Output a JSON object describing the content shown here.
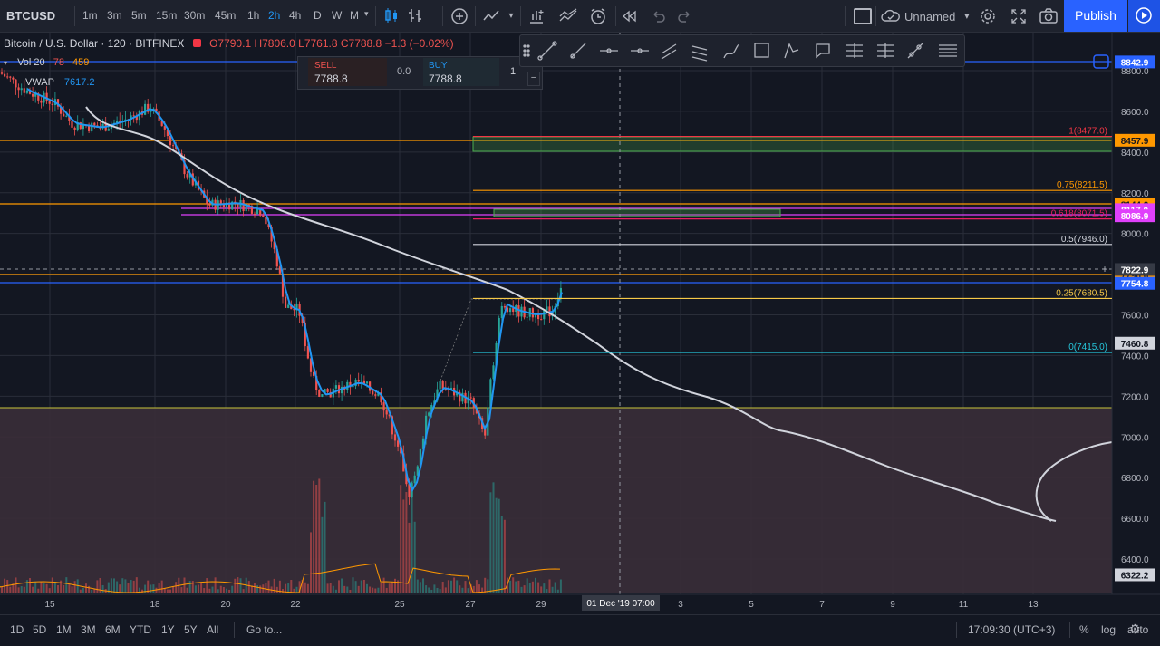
{
  "toolbar": {
    "symbol": "BTCUSD",
    "intervals": [
      "1m",
      "3m",
      "5m",
      "15m",
      "30m",
      "45m",
      "1h",
      "2h",
      "4h",
      "D",
      "W",
      "M"
    ],
    "active_interval": "2h",
    "layout_name": "Unnamed",
    "publish_label": "Publish"
  },
  "legend": {
    "title": "Bitcoin / U.S. Dollar · 120 · BITFINEX",
    "ohlc": "O7790.1  H7806.0  L7761.8  C7788.8  −1.3 (−0.02%)",
    "vol_label": "Vol 20",
    "vol_v1": "78",
    "vol_v2": "459",
    "vwap_label": "VWAP",
    "vwap_value": "7617.2"
  },
  "trade": {
    "sell_label": "SELL",
    "sell_price": "7788.8",
    "spread": "0.0",
    "buy_label": "BUY",
    "buy_price": "7788.8",
    "qty": "1"
  },
  "price_axis": {
    "ticks": [
      "8800.0",
      "8600.0",
      "8400.0",
      "8200.0",
      "8000.0",
      "7800.0",
      "7600.0",
      "7400.0",
      "7200.0",
      "7000.0",
      "6800.0",
      "6600.0",
      "6400.0"
    ],
    "labels": [
      {
        "text": "8842.9",
        "bg": "#2962ff",
        "fg": "#ffffff",
        "price": 8842.9
      },
      {
        "text": "8457.9",
        "bg": "#ff9800",
        "fg": "#131722",
        "price": 8457.9
      },
      {
        "text": "8144.0",
        "bg": "#ff9800",
        "fg": "#131722",
        "price": 8144.0
      },
      {
        "text": "8117.0",
        "bg": "#e040fb",
        "fg": "#ffffff",
        "price": 8117.0
      },
      {
        "text": "8086.9",
        "bg": "#e040fb",
        "fg": "#ffffff",
        "price": 8086.9
      },
      {
        "text": "7796.6",
        "bg": "#ff9800",
        "fg": "#131722",
        "price": 7796.6
      },
      {
        "text": "7822.9",
        "bg": "#363a45",
        "fg": "#ffffff",
        "price": 7822.9
      },
      {
        "text": "7754.8",
        "bg": "#2962ff",
        "fg": "#ffffff",
        "price": 7754.8
      },
      {
        "text": "7460.8",
        "bg": "#d1d4dc",
        "fg": "#131722",
        "price": 7460.8
      },
      {
        "text": "6322.2",
        "bg": "#d1d4dc",
        "fg": "#131722",
        "price": 6322.2
      }
    ]
  },
  "time_axis": {
    "ticks": [
      "15",
      "18",
      "20",
      "22",
      "25",
      "27",
      "29",
      "3",
      "5",
      "7",
      "9",
      "11",
      "13"
    ],
    "crosshair_label": "01 Dec '19   07:00"
  },
  "fib": [
    {
      "label": "1(8477.0)",
      "color": "#f23645",
      "price": 8477.0
    },
    {
      "label": "0.75(8211.5)",
      "color": "#ff9800",
      "price": 8211.5
    },
    {
      "label": "0.618(8071.5)",
      "color": "#e91e63",
      "price": 8071.5
    },
    {
      "label": "0.5(7946.0)",
      "color": "#d1d4dc",
      "price": 7946.0
    },
    {
      "label": "0.25(7680.5)",
      "color": "#f7c948",
      "price": 7680.5
    },
    {
      "label": "0(7415.0)",
      "color": "#26c6da",
      "price": 7415.0
    }
  ],
  "bottom": {
    "ranges": [
      "1D",
      "5D",
      "1M",
      "3M",
      "6M",
      "YTD",
      "1Y",
      "5Y",
      "All"
    ],
    "goto": "Go to...",
    "clock": "17:09:30 (UTC+3)",
    "percent": "%",
    "log": "log",
    "auto": "auto"
  },
  "colors": {
    "up": "#26a69a",
    "down": "#ef5350",
    "vwap": "#2196f3",
    "ma": "#d1d4dc",
    "accent": "#2962ff"
  },
  "icons": [
    "candle-style-icon",
    "indicators-icon",
    "compare-icon",
    "alert-icon",
    "replay-icon",
    "undo-icon",
    "redo-icon",
    "settings-icon",
    "fullscreen-icon",
    "snapshot-icon",
    "play-icon"
  ]
}
